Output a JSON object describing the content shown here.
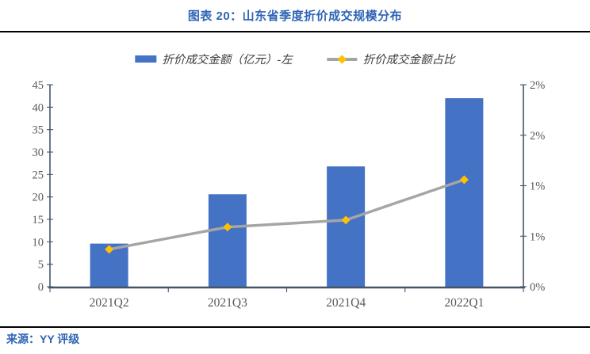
{
  "header": {
    "title": "图表 20：山东省季度折价成交规模分布"
  },
  "footer": {
    "source": "来源：YY 评级"
  },
  "colors": {
    "title_blue": "#2e64b5",
    "bar_blue": "#4472c4",
    "line_gray": "#a5a5a5",
    "marker_gold": "#ffc000",
    "axis_navy": "#44546a",
    "tick_label_gray": "#595959",
    "rule_black": "#000000"
  },
  "chart_data": {
    "type": "bar",
    "subtype": "bar-with-line-overlay",
    "categories": [
      "2021Q2",
      "2021Q3",
      "2021Q4",
      "2022Q1"
    ],
    "series": [
      {
        "name": "折价成交金额（亿元）-左",
        "type": "bar",
        "axis": "left",
        "color": "#4472c4",
        "values": [
          9.6,
          20.6,
          26.8,
          42.0
        ]
      },
      {
        "name": "折价成交金额占比",
        "type": "line",
        "axis": "right",
        "color": "#a5a5a5",
        "marker": "diamond",
        "marker_color": "#ffc000",
        "values": [
          0.37,
          0.59,
          0.66,
          1.06
        ]
      }
    ],
    "left_axis": {
      "min": 0,
      "max": 45,
      "step": 5,
      "tick_labels": [
        "0",
        "5",
        "10",
        "15",
        "20",
        "25",
        "30",
        "35",
        "40",
        "45"
      ]
    },
    "right_axis": {
      "min": 0,
      "max": 2,
      "step": 0.5,
      "tick_labels": [
        "0%",
        "1%",
        "1%",
        "2%",
        "2%"
      ]
    },
    "grid": false,
    "legend_position": "top"
  }
}
